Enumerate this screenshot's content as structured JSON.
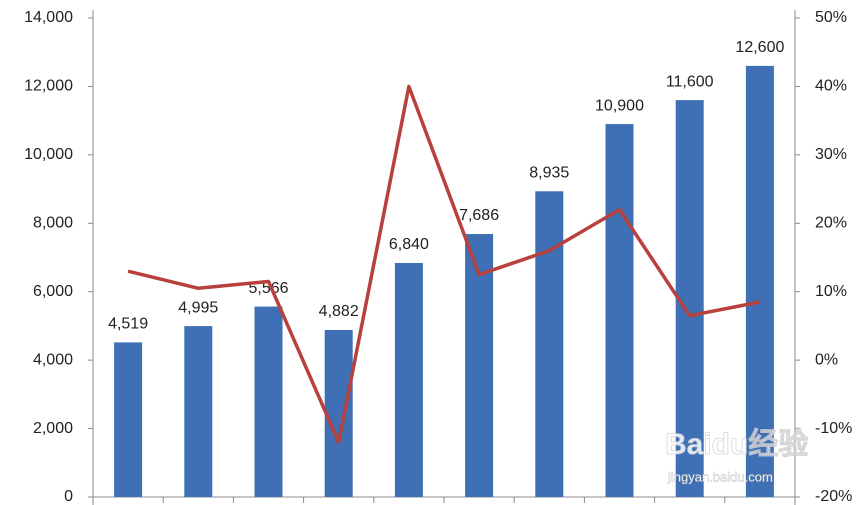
{
  "chart_data": {
    "type": "bar",
    "categories": [
      null,
      null,
      null,
      null,
      null,
      null,
      null,
      null,
      null,
      null
    ],
    "series": [
      {
        "type": "bar",
        "color": "#3f6fb5",
        "values": [
          4519,
          4995,
          5566,
          4882,
          6840,
          7686,
          8935,
          10900,
          11600,
          12600
        ],
        "value_labels": [
          "4,519",
          "4,995",
          "5,566",
          "4,882",
          "6,840",
          "7,686",
          "8,935",
          "10,900",
          "11,600",
          "12,600"
        ]
      },
      {
        "type": "line",
        "axis": "y2",
        "color": "#b8403d",
        "values": [
          13,
          10.5,
          11.5,
          -12,
          40,
          12.5,
          16,
          22,
          6.5,
          8.5
        ]
      }
    ],
    "ylim": [
      0,
      14000
    ],
    "yticks": [
      0,
      {
        "value": 2000,
        "label": "2,000"
      },
      {
        "value": 4000,
        "label": "4,000"
      },
      {
        "value": 6000,
        "label": "6,000"
      },
      {
        "value": 8000,
        "label": "8,000"
      },
      {
        "value": 10000,
        "label": "10,000"
      },
      {
        "value": 12000,
        "label": "12,000"
      },
      {
        "value": 14000,
        "label": "14,000"
      }
    ],
    "y2lim": [
      -20,
      50
    ],
    "y2ticks": [
      {
        "value": -20,
        "label": "-20%"
      },
      {
        "value": -10,
        "label": "-10%"
      },
      {
        "value": 0,
        "label": "0%"
      },
      {
        "value": 10,
        "label": "10%"
      },
      {
        "value": 20,
        "label": "20%"
      },
      {
        "value": 30,
        "label": "30%"
      },
      {
        "value": 40,
        "label": "40%"
      },
      {
        "value": 50,
        "label": "50%"
      }
    ],
    "grid": false,
    "watermark": [
      "Baidu经验",
      "jingyan.baidu.com"
    ]
  }
}
